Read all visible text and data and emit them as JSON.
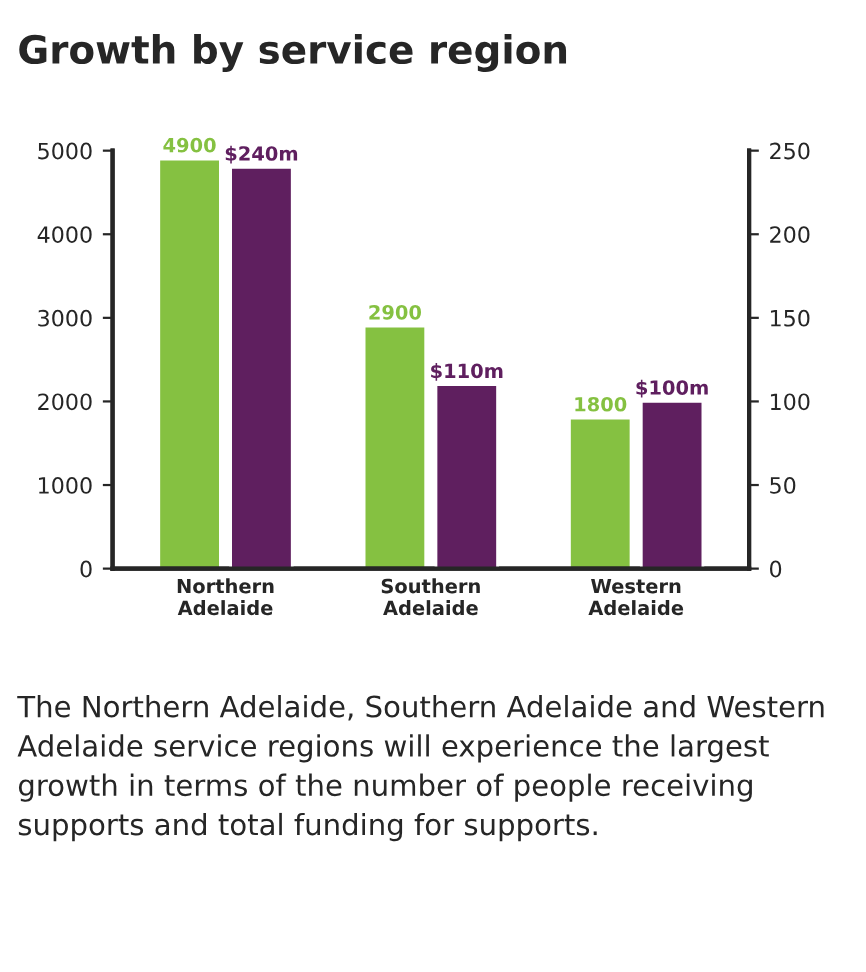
{
  "chart_data": {
    "type": "bar",
    "title": "Growth by service region",
    "categories": [
      "Northern\nAdelaide",
      "Southern\nAdelaide",
      "Western\nAdelaide"
    ],
    "series": [
      {
        "color": "#85c141",
        "values": [
          4900,
          2900,
          1800
        ],
        "value_labels": [
          "4900",
          "2900",
          "1800"
        ]
      },
      {
        "color": "#5f1f5f",
        "values": [
          240,
          110,
          100
        ],
        "value_labels": [
          "$240m",
          "$110m",
          "$100m"
        ],
        "axis": "y2"
      }
    ],
    "ylim": [
      0,
      5000
    ],
    "yticks": [
      0,
      1000,
      2000,
      3000,
      4000,
      5000
    ],
    "y2lim": [
      0,
      250
    ],
    "y2ticks": [
      0,
      50,
      100,
      150,
      200,
      250
    ],
    "grid": false,
    "annotations": [
      "The Northern Adelaide, Southern Adelaide and Western Adelaide service regions will experience the largest growth in terms of the number of people receiving supports and total funding for supports."
    ]
  }
}
